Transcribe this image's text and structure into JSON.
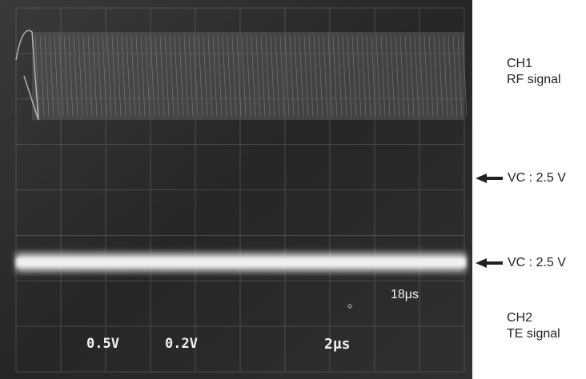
{
  "channels": {
    "ch1": {
      "name": "CH1",
      "signal": "RF signal"
    },
    "ch2": {
      "name": "CH2",
      "signal": "TE signal"
    }
  },
  "reference_markers": [
    {
      "label": "VC : 2.5 V"
    },
    {
      "label": "VC : 2.5 V"
    }
  ],
  "scope_readout": {
    "ch1_scale": "0.5V",
    "ch2_scale": "0.2V",
    "timebase": "2μs",
    "delay": "18μs"
  },
  "colors": {
    "screen_bg": "#2a2a2a",
    "trace": "#e8e8e8",
    "grid": "#7a7a7a",
    "label_text": "#222222"
  }
}
